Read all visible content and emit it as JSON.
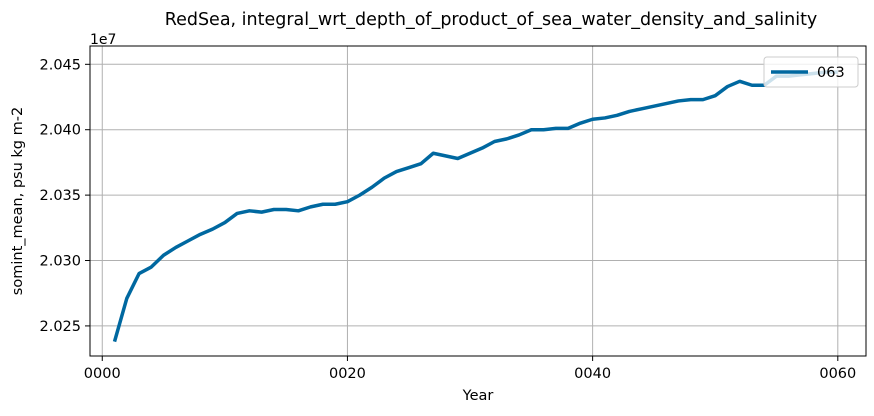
{
  "chart_data": {
    "type": "line",
    "title": "RedSea, integral_wrt_depth_of_product_of_sea_water_density_and_salinity",
    "xlabel": "Year",
    "ylabel": "somint_mean, psu kg m-2",
    "offset_label": "1e7",
    "x_ticks": [
      0,
      20,
      40,
      60
    ],
    "x_tick_labels": [
      "0000",
      "0020",
      "0040",
      "0060"
    ],
    "y_ticks": [
      2.025,
      2.03,
      2.035,
      2.04,
      2.045
    ],
    "y_tick_labels": [
      "2.025",
      "2.030",
      "2.035",
      "2.040",
      "2.045"
    ],
    "xlim": [
      -1.0,
      62.3
    ],
    "ylim": [
      2.0227,
      2.0464
    ],
    "grid": true,
    "legend_position": "top-right",
    "series": [
      {
        "name": "063",
        "color": "#0068a0",
        "x": [
          1,
          2,
          3,
          4,
          5,
          6,
          7,
          8,
          9,
          10,
          11,
          12,
          13,
          14,
          15,
          16,
          17,
          18,
          19,
          20,
          21,
          22,
          23,
          24,
          25,
          26,
          27,
          28,
          29,
          30,
          31,
          32,
          33,
          34,
          35,
          36,
          37,
          38,
          39,
          40,
          41,
          42,
          43,
          44,
          45,
          46,
          47,
          48,
          49,
          50,
          51,
          52,
          53,
          54,
          55,
          56,
          57,
          58,
          59,
          60
        ],
        "values": [
          2.0238,
          2.0271,
          2.029,
          2.0295,
          2.0304,
          2.031,
          2.0315,
          2.032,
          2.0324,
          2.0329,
          2.0336,
          2.0338,
          2.0337,
          2.0339,
          2.0339,
          2.0338,
          2.0341,
          2.0343,
          2.0343,
          2.0345,
          2.035,
          2.0356,
          2.0363,
          2.0368,
          2.0371,
          2.0374,
          2.0382,
          2.038,
          2.0378,
          2.0382,
          2.0386,
          2.0391,
          2.0393,
          2.0396,
          2.04,
          2.04,
          2.0401,
          2.0401,
          2.0405,
          2.0408,
          2.0409,
          2.0411,
          2.0414,
          2.0416,
          2.0418,
          2.042,
          2.0422,
          2.0423,
          2.0423,
          2.0426,
          2.0433,
          2.0437,
          2.0434,
          2.0434,
          2.0441,
          2.0441,
          2.0442,
          2.0443,
          2.0444,
          2.0444
        ]
      }
    ]
  }
}
